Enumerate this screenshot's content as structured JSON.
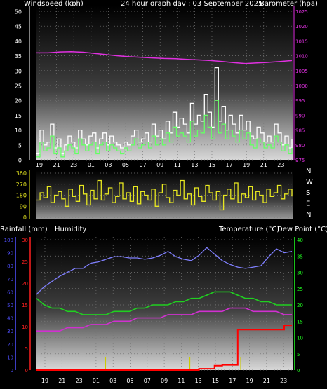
{
  "header": {
    "windspeed_label": "Windspeed (kph)",
    "title": "24 hour graph day : 03 September 2025",
    "barometer_label": "Barometer (hpa)",
    "rainfall_label": "Rainfall (mm)",
    "humidity_label": "Humidity",
    "temperature_label": "Temperature (°C)",
    "dewpoint_label": "Dew Point (°C)"
  },
  "colors": {
    "background": "#000000",
    "windspeed": "#d8d8d8",
    "windgust": "#ffffff",
    "wind_avg": "#66ff66",
    "barometer": "#e030e0",
    "direction": "#e8e820",
    "humidity": "#8080ff",
    "temperature": "#20d020",
    "dewpoint": "#d030d0",
    "rain": "#ff0000",
    "rain_rate": "#cccc00",
    "axis_red": "#ff2020",
    "axis_green": "#20ff20",
    "axis_blue": "#5050ff"
  },
  "chart_data": [
    {
      "type": "line",
      "name": "wind-barometer",
      "x_ticks": [
        "19",
        "21",
        "23",
        "01",
        "03",
        "05",
        "07",
        "09",
        "11",
        "13",
        "15",
        "17",
        "19",
        "21",
        "23"
      ],
      "y_left_ticks": [
        "0",
        "5",
        "10",
        "15",
        "20",
        "25",
        "30",
        "35",
        "40",
        "45",
        "50"
      ],
      "y_left_lim": [
        0,
        50
      ],
      "y_right_ticks": [
        "975",
        "980",
        "985",
        "990",
        "995",
        "1000",
        "1005",
        "1010",
        "1015",
        "1020",
        "1025"
      ],
      "y_right_lim": [
        975,
        1025
      ],
      "series": [
        {
          "key": "gust",
          "axis": "left",
          "values": [
            2,
            10,
            5,
            6,
            12,
            4,
            7,
            2,
            5,
            8,
            6,
            4,
            10,
            7,
            5,
            8,
            9,
            4,
            7,
            9,
            5,
            8,
            6,
            5,
            4,
            6,
            5,
            8,
            10,
            6,
            7,
            9,
            6,
            12,
            8,
            10,
            7,
            13,
            9,
            16,
            11,
            14,
            12,
            9,
            19,
            12,
            15,
            13,
            22,
            16,
            11,
            31,
            13,
            18,
            10,
            15,
            12,
            9,
            15,
            10,
            13,
            8,
            7,
            11,
            9,
            6,
            8,
            6,
            12,
            9,
            5,
            8,
            4,
            7
          ]
        },
        {
          "key": "speed",
          "axis": "left",
          "values": [
            1,
            6,
            3,
            4,
            8,
            2,
            4,
            1,
            3,
            5,
            4,
            2,
            7,
            5,
            3,
            5,
            6,
            2,
            5,
            6,
            3,
            5,
            4,
            3,
            2,
            4,
            3,
            5,
            7,
            4,
            5,
            6,
            4,
            8,
            5,
            7,
            5,
            9,
            6,
            11,
            8,
            9,
            8,
            6,
            13,
            8,
            10,
            9,
            15,
            11,
            7,
            20,
            9,
            12,
            7,
            10,
            8,
            6,
            10,
            7,
            9,
            5,
            4,
            7,
            6,
            4,
            5,
            4,
            8,
            6,
            3,
            5,
            2,
            4
          ]
        },
        {
          "key": "barometer",
          "axis": "right",
          "values": [
            1011,
            1011,
            1011.3,
            1011.4,
            1011.2,
            1010.8,
            1010.4,
            1010,
            1009.7,
            1009.5,
            1009.3,
            1009.1,
            1009,
            1008.8,
            1008.6,
            1008.4,
            1008.1,
            1007.7,
            1007.4,
            1007.6,
            1007.8,
            1008.1,
            1008.4
          ]
        }
      ]
    },
    {
      "type": "line",
      "name": "wind-direction",
      "y_left_ticks": [
        "0",
        "90",
        "180",
        "270",
        "360"
      ],
      "y_lim": [
        0,
        360
      ],
      "compass_labels": [
        "N",
        "W",
        "S",
        "E",
        "N"
      ],
      "series": [
        {
          "key": "direction",
          "values": [
            140,
            200,
            160,
            250,
            120,
            180,
            210,
            150,
            90,
            230,
            170,
            130,
            260,
            190,
            100,
            220,
            150,
            300,
            140,
            190,
            240,
            120,
            170,
            280,
            150,
            200,
            130,
            250,
            110,
            210,
            180,
            140,
            230,
            90,
            200,
            270,
            160,
            120,
            220,
            180,
            300,
            150,
            190,
            100,
            240,
            170,
            130,
            260,
            200,
            140,
            210,
            60,
            180,
            230,
            150,
            280,
            120,
            190,
            160,
            250,
            140,
            210,
            180,
            120,
            230,
            170,
            200,
            260,
            150,
            190,
            230,
            170
          ]
        }
      ]
    },
    {
      "type": "line",
      "name": "rain-humidity-temperature",
      "x_ticks": [
        "19",
        "21",
        "23",
        "01",
        "03",
        "05",
        "07",
        "09",
        "11",
        "13",
        "15",
        "17",
        "19",
        "21",
        "23"
      ],
      "y_rain_ticks": [
        "0",
        "5",
        "10",
        "15",
        "20",
        "25",
        "30"
      ],
      "y_rain_lim": [
        0,
        30
      ],
      "y_humidity_ticks": [
        "0",
        "10",
        "20",
        "30",
        "40",
        "50",
        "60",
        "70",
        "80",
        "90",
        "100"
      ],
      "y_humidity_lim": [
        0,
        100
      ],
      "y_temp_ticks": [
        "0",
        "5",
        "10",
        "15",
        "20",
        "25",
        "30",
        "35",
        "40"
      ],
      "y_temp_lim": [
        0,
        40
      ],
      "series": [
        {
          "key": "humidity",
          "axis": "humidity",
          "values": [
            58,
            64,
            68,
            72,
            75,
            78,
            78,
            82,
            83,
            85,
            87,
            87,
            86,
            86,
            85,
            86,
            88,
            91,
            87,
            85,
            84,
            88,
            94,
            89,
            84,
            81,
            79,
            78,
            79,
            80,
            87,
            93,
            90,
            91
          ]
        },
        {
          "key": "temperature",
          "axis": "temp",
          "values": [
            22,
            20,
            19,
            19,
            18,
            18,
            17,
            17,
            17,
            17,
            18,
            18,
            18,
            19,
            19,
            20,
            20,
            20,
            21,
            21,
            22,
            22,
            23,
            24,
            24,
            24,
            23,
            22,
            22,
            21,
            21,
            20,
            20,
            20
          ]
        },
        {
          "key": "dewpoint",
          "axis": "temp",
          "values": [
            12,
            12,
            12,
            12,
            13,
            13,
            13,
            14,
            14,
            14,
            15,
            15,
            15,
            16,
            16,
            16,
            16,
            17,
            17,
            17,
            17,
            18,
            18,
            18,
            18,
            19,
            19,
            19,
            18,
            18,
            18,
            18,
            17,
            17
          ]
        },
        {
          "key": "rain",
          "axis": "rain",
          "values": [
            0,
            0,
            0,
            0,
            0,
            0,
            0,
            0,
            0,
            0,
            0,
            0,
            0,
            0,
            0,
            0,
            0,
            0,
            0,
            0,
            0,
            0.3,
            0.3,
            1,
            1.2,
            1.2,
            9.3,
            9.3,
            9.3,
            9.3,
            9.3,
            9.3,
            10.3,
            10.3
          ]
        }
      ],
      "rain_rate_markers": [
        0.27,
        0.6,
        0.8
      ],
      "rain_rate_values": [
        3,
        3,
        3
      ]
    }
  ]
}
